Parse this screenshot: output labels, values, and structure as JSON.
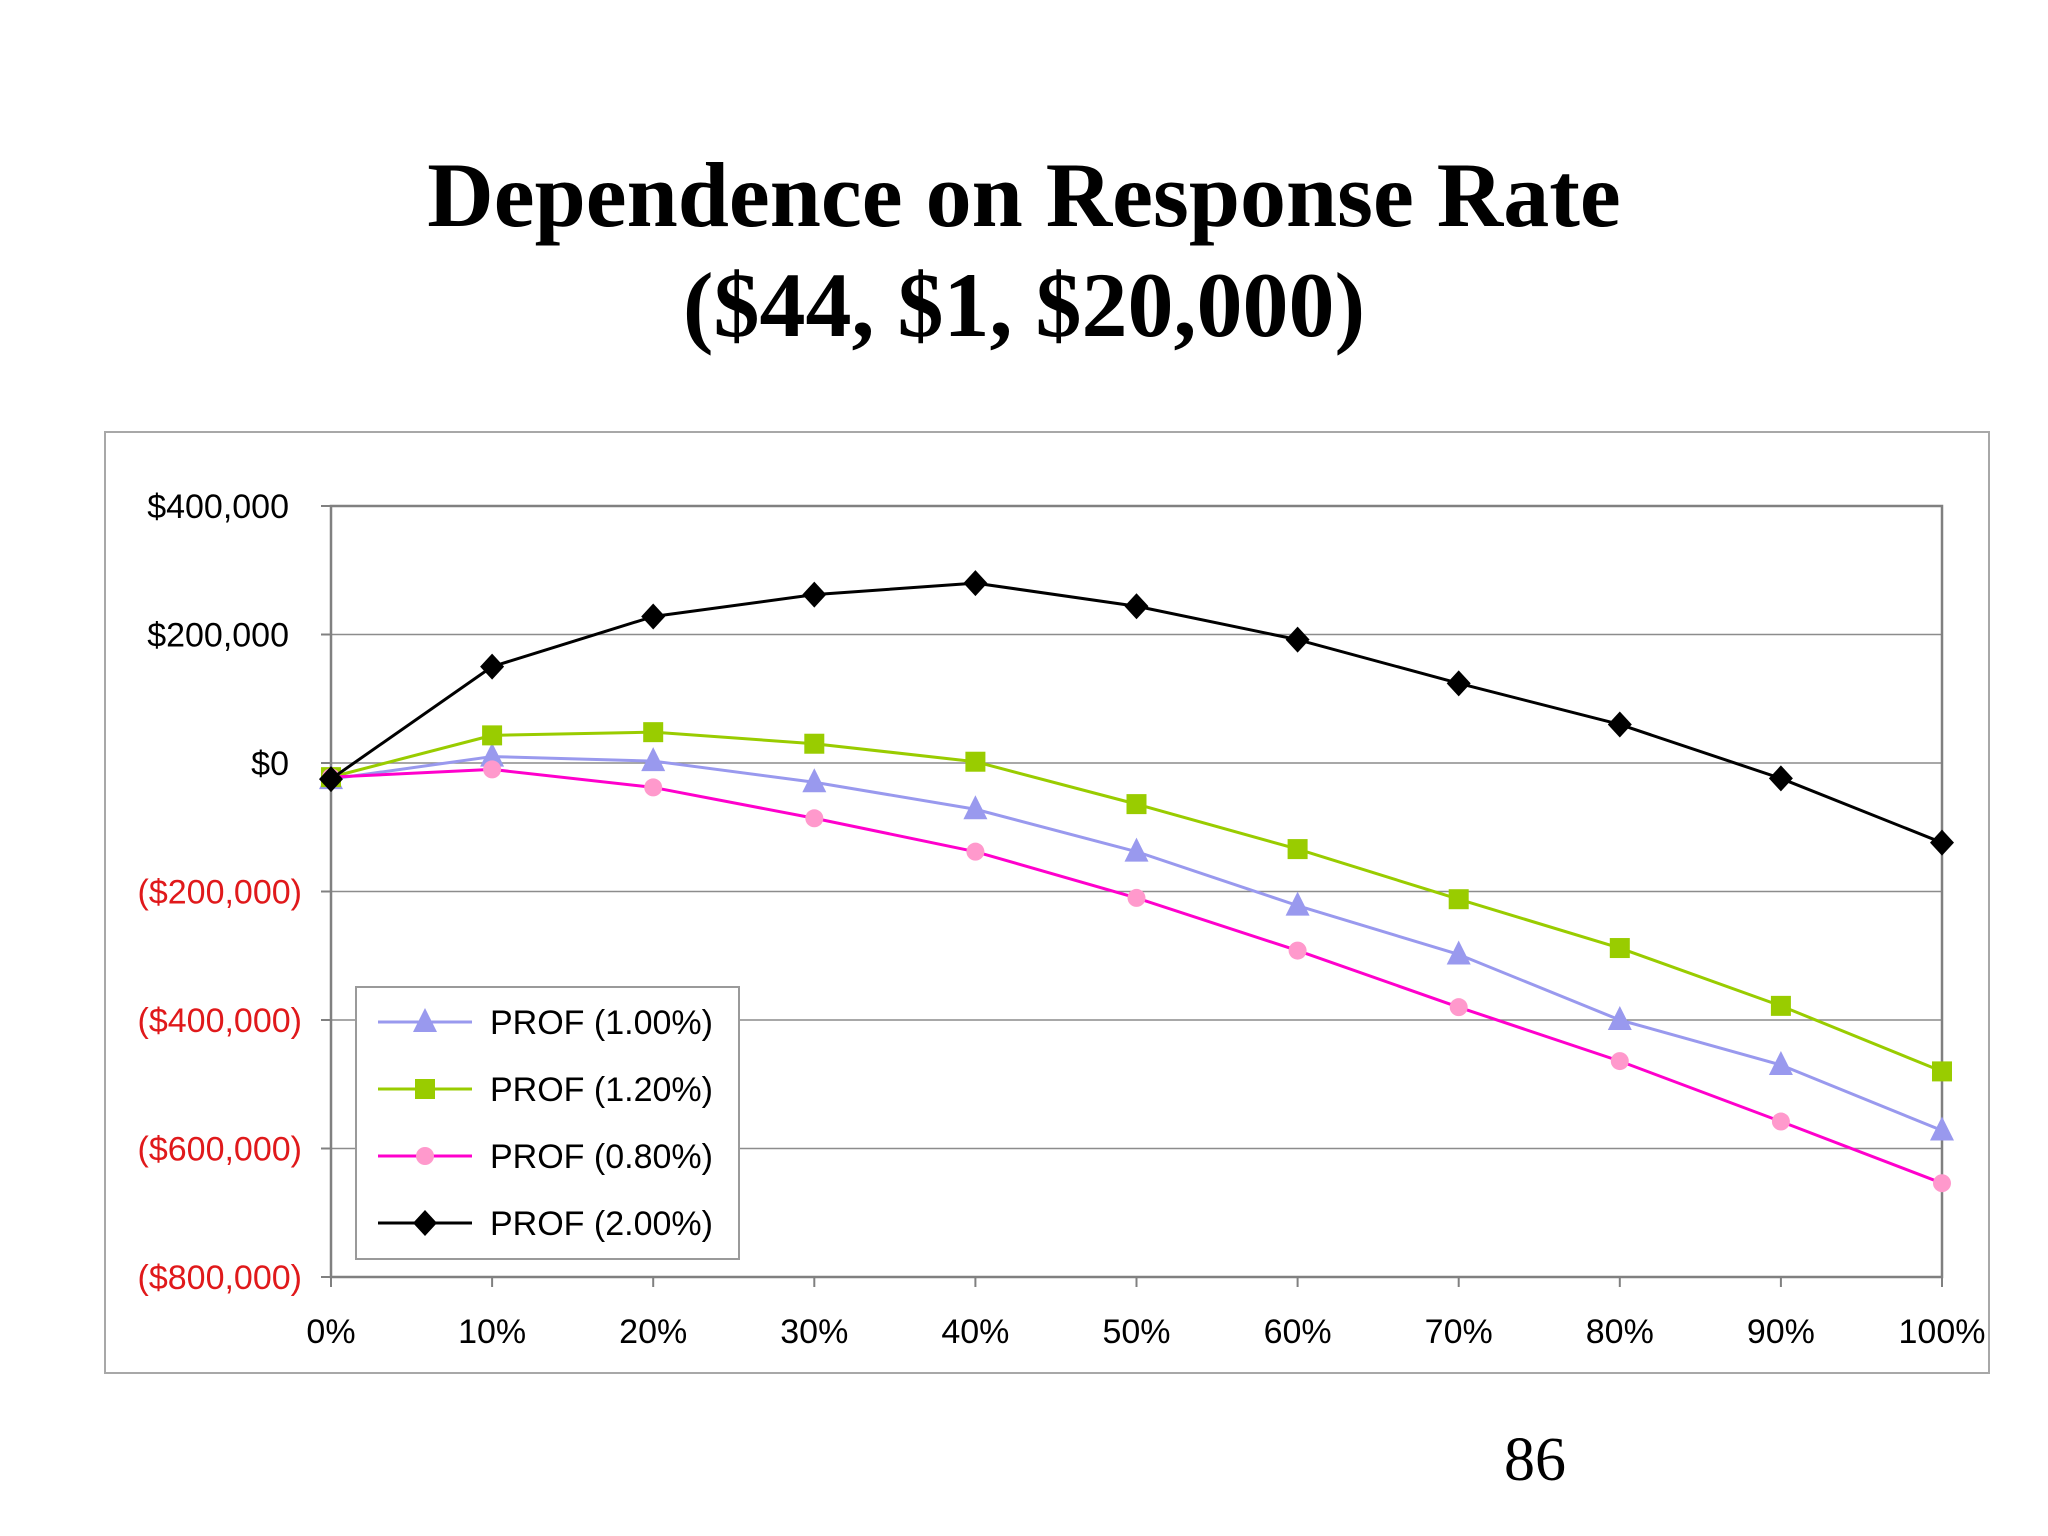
{
  "slide": {
    "title_line1": "Dependence on Response Rate",
    "title_line2": "($44, $1, $20,000)",
    "page_number": "86"
  },
  "chart_data": {
    "type": "line",
    "title": "",
    "xlabel": "",
    "ylabel": "",
    "x": [
      0,
      10,
      20,
      30,
      40,
      50,
      60,
      70,
      80,
      90,
      100
    ],
    "x_tick_labels": [
      "0%",
      "10%",
      "20%",
      "30%",
      "40%",
      "50%",
      "60%",
      "70%",
      "80%",
      "90%",
      "100%"
    ],
    "xlim": [
      0,
      100
    ],
    "ylim": [
      -800000,
      400000
    ],
    "y_ticks": [
      400000,
      200000,
      0,
      -200000,
      -400000,
      -600000,
      -800000
    ],
    "y_tick_labels": [
      "$400,000",
      "$200,000",
      "$0",
      "($200,000)",
      "($400,000)",
      "($600,000)",
      "($800,000)"
    ],
    "negative_label_color": "#e0191b",
    "positive_label_color": "#000000",
    "grid": "horizontal",
    "legend_position": "bottom-left",
    "series": [
      {
        "name": "PROF (1.00%)",
        "color": "#9999ee",
        "marker": "triangle",
        "values": [
          -25000,
          10000,
          3000,
          -30000,
          -72000,
          -138000,
          -222000,
          -298000,
          -400000,
          -470000,
          -572000
        ]
      },
      {
        "name": "PROF (1.20%)",
        "color": "#99cc00",
        "marker": "square",
        "values": [
          -22000,
          43000,
          48000,
          30000,
          2000,
          -64000,
          -134000,
          -212000,
          -288000,
          -378000,
          -480000
        ]
      },
      {
        "name": "PROF (0.80%)",
        "color": "#ff00cc",
        "marker_color": "#ff99cc",
        "marker": "circle",
        "values": [
          -22000,
          -10000,
          -38000,
          -86000,
          -138000,
          -210000,
          -292000,
          -380000,
          -464000,
          -558000,
          -654000
        ]
      },
      {
        "name": "PROF (2.00%)",
        "color": "#000000",
        "marker": "diamond",
        "values": [
          -25000,
          150000,
          228000,
          262000,
          280000,
          244000,
          192000,
          124000,
          60000,
          -24000,
          -124000
        ]
      }
    ]
  }
}
